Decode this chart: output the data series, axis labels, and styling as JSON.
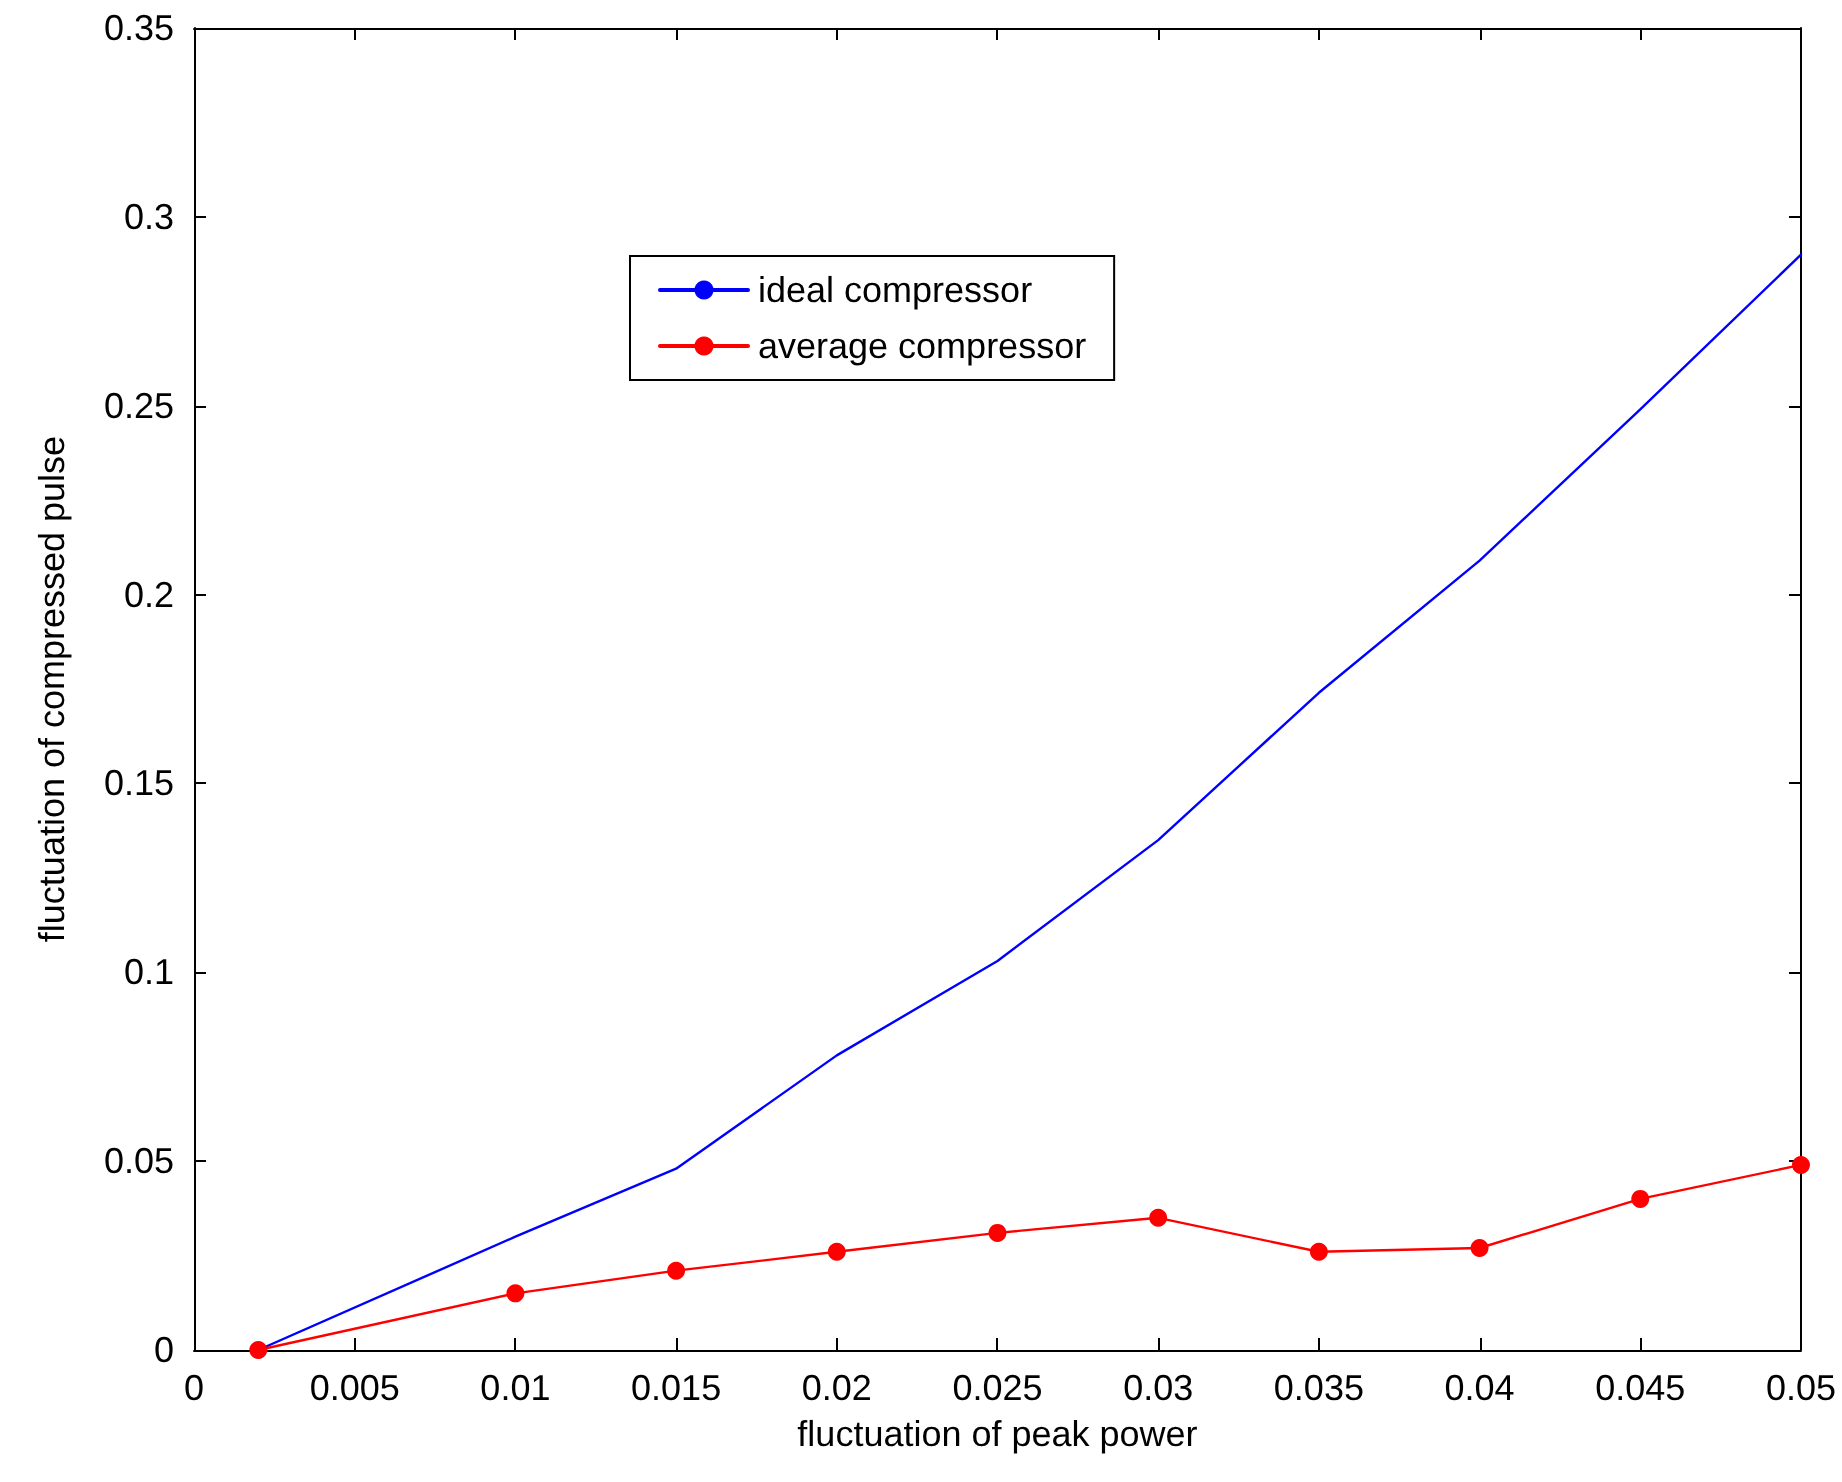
{
  "chart_data": {
    "type": "line",
    "xlabel": "fluctuation of peak power",
    "ylabel": "fluctuation of compressed pulse",
    "x": [
      0.002,
      0.01,
      0.015,
      0.02,
      0.025,
      0.03,
      0.035,
      0.04,
      0.045,
      0.05
    ],
    "series": [
      {
        "name": "ideal compressor",
        "color": "#0000ff",
        "marker": "none",
        "values": [
          0,
          0.03,
          0.048,
          0.078,
          0.103,
          0.135,
          0.174,
          0.209,
          0.249,
          0.29
        ]
      },
      {
        "name": "average compressor",
        "color": "#ff0000",
        "marker": "circle",
        "values": [
          0,
          0.015,
          0.021,
          0.026,
          0.031,
          0.035,
          0.026,
          0.027,
          0.04,
          0.049
        ]
      }
    ],
    "xlim": [
      0,
      0.05
    ],
    "xticks": [
      0,
      0.005,
      0.01,
      0.015,
      0.02,
      0.025,
      0.03,
      0.035,
      0.04,
      0.045,
      0.05
    ],
    "ylim": [
      0,
      0.35
    ],
    "yticks": [
      0,
      0.05,
      0.1,
      0.15,
      0.2,
      0.25,
      0.3,
      0.35
    ],
    "grid": false,
    "legend": "top"
  }
}
